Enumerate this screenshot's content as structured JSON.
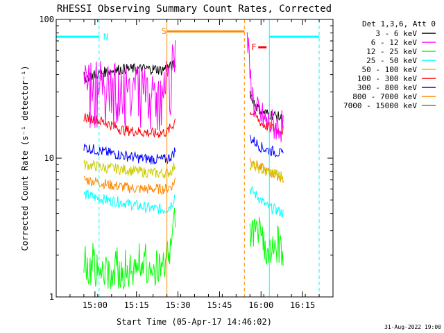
{
  "chart_data": {
    "type": "line",
    "title": "RHESSI Observing Summary Count Rates, Corrected",
    "xlabel": "Start Time (05-Apr-17 14:46:02)",
    "ylabel": "Corrected Count Rate (s⁻¹ detector⁻¹)",
    "yscale": "log",
    "ylim": [
      1,
      100
    ],
    "xlim_minutes": [
      0,
      100
    ],
    "x_ticks": [
      {
        "label": "15:00",
        "t": 14
      },
      {
        "label": "15:15",
        "t": 29
      },
      {
        "label": "15:30",
        "t": 44
      },
      {
        "label": "15:45",
        "t": 59
      },
      {
        "label": "16:00",
        "t": 74
      },
      {
        "label": "16:15",
        "t": 89
      }
    ],
    "y_ticks": [
      {
        "label": "1",
        "v": 1
      },
      {
        "label": "10",
        "v": 10
      },
      {
        "label": "100",
        "v": 100
      }
    ],
    "legend_header": "Det 1,3,6, Att 0",
    "legend_position": "right",
    "series": [
      {
        "name": "3 - 6 keV",
        "color": "#000000",
        "seg1": [
          [
            10,
            38
          ],
          [
            14,
            40
          ],
          [
            18,
            42
          ],
          [
            24,
            44
          ],
          [
            30,
            44
          ],
          [
            36,
            44
          ],
          [
            38,
            43
          ],
          [
            40,
            45
          ],
          [
            42,
            46
          ],
          [
            43,
            48
          ]
        ],
        "seg2": [
          [
            70,
            30
          ],
          [
            72,
            24
          ],
          [
            74,
            22
          ],
          [
            76,
            21
          ],
          [
            80,
            20
          ],
          [
            82,
            19
          ]
        ]
      },
      {
        "name": "6 - 12 keV",
        "color": "#ff00ff",
        "seg1": [
          [
            10,
            38
          ],
          [
            14,
            38
          ],
          [
            18,
            38
          ],
          [
            24,
            38
          ],
          [
            30,
            38
          ],
          [
            36,
            38
          ],
          [
            40,
            38
          ],
          [
            41,
            38
          ],
          [
            42,
            55
          ],
          [
            43,
            80
          ]
        ],
        "seg2": [
          [
            69,
            80
          ],
          [
            70,
            40
          ],
          [
            71,
            28
          ],
          [
            72,
            22
          ],
          [
            74,
            20
          ],
          [
            76,
            18
          ],
          [
            80,
            17
          ],
          [
            82,
            17
          ]
        ]
      },
      {
        "name": "12 - 25 keV",
        "color": "#00ff00",
        "seg1": [
          [
            10,
            1.5
          ],
          [
            14,
            1.5
          ],
          [
            18,
            1.5
          ],
          [
            24,
            1.5
          ],
          [
            30,
            1.5
          ],
          [
            36,
            1.5
          ],
          [
            38,
            1.5
          ],
          [
            40,
            1.8
          ],
          [
            42,
            2.5
          ],
          [
            43,
            4
          ]
        ],
        "seg2": [
          [
            70,
            3.0
          ],
          [
            74,
            2.4
          ],
          [
            76,
            2.2
          ],
          [
            80,
            2.2
          ],
          [
            82,
            2.2
          ]
        ]
      },
      {
        "name": "25 - 50 keV",
        "color": "#00ffff",
        "seg1": [
          [
            10,
            5.5
          ],
          [
            14,
            5.2
          ],
          [
            18,
            5.0
          ],
          [
            24,
            4.8
          ],
          [
            30,
            4.5
          ],
          [
            36,
            4.3
          ],
          [
            40,
            4.3
          ],
          [
            42,
            4.8
          ],
          [
            43,
            5.5
          ]
        ],
        "seg2": [
          [
            70,
            6.0
          ],
          [
            74,
            5.0
          ],
          [
            76,
            4.5
          ],
          [
            80,
            4.2
          ],
          [
            82,
            4.0
          ]
        ]
      },
      {
        "name": "50 - 100 keV",
        "color": "#cccc00",
        "seg1": [
          [
            10,
            9.0
          ],
          [
            14,
            8.8
          ],
          [
            18,
            8.5
          ],
          [
            24,
            8.3
          ],
          [
            30,
            8.0
          ],
          [
            36,
            7.8
          ],
          [
            40,
            7.8
          ],
          [
            42,
            8.2
          ],
          [
            43,
            9.0
          ]
        ],
        "seg2": [
          [
            70,
            9.0
          ],
          [
            74,
            8.3
          ],
          [
            76,
            8.0
          ],
          [
            80,
            7.6
          ],
          [
            82,
            7.4
          ]
        ]
      },
      {
        "name": "100 - 300 keV",
        "color": "#ff0000",
        "seg1": [
          [
            10,
            20
          ],
          [
            14,
            19
          ],
          [
            18,
            18
          ],
          [
            24,
            16
          ],
          [
            30,
            15.5
          ],
          [
            36,
            15
          ],
          [
            40,
            15.5
          ],
          [
            42,
            17
          ],
          [
            43,
            19
          ]
        ],
        "seg2": [
          [
            70,
            22
          ],
          [
            72,
            20
          ],
          [
            74,
            18
          ],
          [
            76,
            17
          ],
          [
            80,
            16
          ],
          [
            82,
            16
          ]
        ]
      },
      {
        "name": "300 - 800 keV",
        "color": "#0000ff",
        "seg1": [
          [
            10,
            12
          ],
          [
            14,
            11.5
          ],
          [
            18,
            11
          ],
          [
            24,
            10.5
          ],
          [
            30,
            10
          ],
          [
            36,
            9.8
          ],
          [
            40,
            9.8
          ],
          [
            42,
            10.5
          ],
          [
            43,
            11.5
          ]
        ],
        "seg2": [
          [
            70,
            14
          ],
          [
            72,
            13
          ],
          [
            74,
            12
          ],
          [
            76,
            11.5
          ],
          [
            80,
            11
          ],
          [
            82,
            10.5
          ]
        ]
      },
      {
        "name": "800 - 7000 keV",
        "color": "#ff8800",
        "seg1": [
          [
            10,
            7.0
          ],
          [
            14,
            6.8
          ],
          [
            18,
            6.5
          ],
          [
            24,
            6.2
          ],
          [
            30,
            6.0
          ],
          [
            36,
            6.0
          ],
          [
            40,
            6.0
          ],
          [
            42,
            6.4
          ],
          [
            43,
            7.0
          ]
        ],
        "seg2": [
          [
            70,
            10
          ],
          [
            72,
            9.0
          ],
          [
            74,
            8.5
          ],
          [
            76,
            8.0
          ],
          [
            80,
            7.5
          ],
          [
            82,
            7.0
          ]
        ]
      },
      {
        "name": "7000 - 15000 keV",
        "color": "#808000",
        "seg1": [],
        "seg2": []
      }
    ],
    "annotations": [
      {
        "text": "N",
        "t": 16.5,
        "color": "#00ffff"
      },
      {
        "text": "S",
        "t": 37.5,
        "color": "#ff8800"
      },
      {
        "text": "F",
        "t": 70,
        "color": "#ff0000"
      }
    ],
    "night_bars": [
      [
        0,
        15.5
      ],
      [
        77,
        95
      ]
    ],
    "saa_bar": [
      40,
      68
    ],
    "flare_bar": [
      73,
      76
    ],
    "vlines": [
      {
        "t": 15.5,
        "color": "#00ffff",
        "style": "dash"
      },
      {
        "t": 40,
        "color": "#ff8800",
        "style": "solid"
      },
      {
        "t": 68,
        "color": "#ff8800",
        "style": "dash"
      },
      {
        "t": 77,
        "color": "#00ffff",
        "style": "solid"
      },
      {
        "t": 95,
        "color": "#00ffff",
        "style": "dash"
      }
    ],
    "footer": "31-Aug-2022 19:00"
  }
}
